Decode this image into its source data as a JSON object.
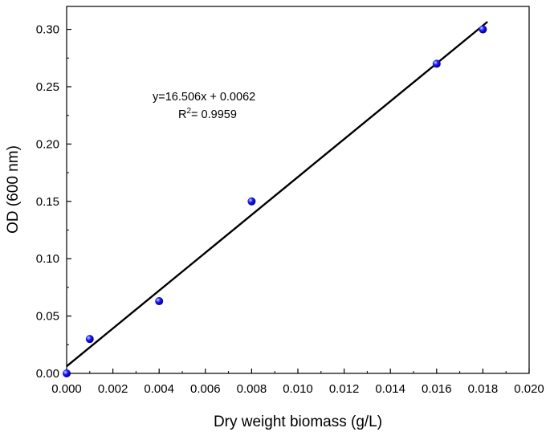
{
  "chart_data": {
    "type": "scatter",
    "title": "",
    "xlabel": "Dry weight biomass (g/L)",
    "ylabel": "OD (600 nm)",
    "xlim": [
      0,
      0.02
    ],
    "ylim": [
      0,
      0.32
    ],
    "x_ticks": [
      "0.000",
      "0.002",
      "0.004",
      "0.006",
      "0.008",
      "0.010",
      "0.012",
      "0.014",
      "0.016",
      "0.018",
      "0.020"
    ],
    "y_ticks": [
      "0.00",
      "0.05",
      "0.10",
      "0.15",
      "0.20",
      "0.25",
      "0.30"
    ],
    "grid": false,
    "series": [
      {
        "marker_color": "#1a1aff",
        "points": [
          {
            "x": 0.0,
            "y": 0.0
          },
          {
            "x": 0.001,
            "y": 0.03
          },
          {
            "x": 0.004,
            "y": 0.063
          },
          {
            "x": 0.008,
            "y": 0.15
          },
          {
            "x": 0.016,
            "y": 0.27
          },
          {
            "x": 0.018,
            "y": 0.3
          }
        ]
      }
    ],
    "fit_line": {
      "slope": 16.506,
      "intercept": 0.0062,
      "x_range": [
        0,
        0.0182
      ],
      "color": "#000000"
    },
    "annotations": {
      "equation": "y=16.506x + 0.0062",
      "r2_prefix": "R",
      "r2_sup": "2",
      "r2_value": "= 0.9959"
    }
  }
}
